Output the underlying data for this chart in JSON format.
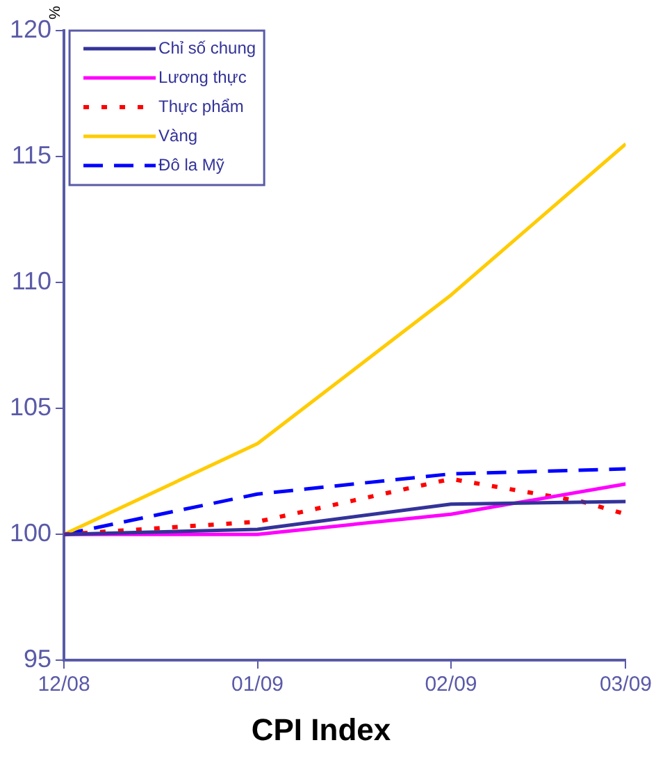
{
  "chart_data": {
    "type": "line",
    "title": "CPI Index",
    "ylabel": "%",
    "x": [
      "2008-12",
      "2009-01",
      "2009-02",
      "2009-03"
    ],
    "xlim": [
      "2008-12",
      "2009-03"
    ],
    "xticks": [
      {
        "value": "2008-12",
        "label": "12/08"
      },
      {
        "value": "2009-01",
        "label": "01/09"
      },
      {
        "value": "2009-02",
        "label": "02/09"
      },
      {
        "value": "2009-03",
        "label": "03/09"
      }
    ],
    "ylim": [
      95,
      120
    ],
    "yticks": [
      95,
      100,
      105,
      110,
      115,
      120
    ],
    "grid": false,
    "legend": "top left",
    "marker": "none",
    "series": [
      {
        "name": "Chỉ số chung",
        "color": "#333399",
        "line_style": "solid",
        "values": [
          100,
          100.2,
          101.2,
          101.3
        ]
      },
      {
        "name": "Lương thực",
        "color": "#ff00ff",
        "line_style": "solid",
        "values": [
          100,
          100,
          100.8,
          102
        ]
      },
      {
        "name": "Thực phẩm",
        "color": "#ff0000",
        "line_style": "dotted",
        "x": [
          "2008-12",
          "2009-01",
          "2009-02",
          "2009-02-22",
          "2009-03"
        ],
        "values": [
          100,
          100.5,
          102.2,
          101.3,
          100.8
        ]
      },
      {
        "name": "Vàng",
        "color": "#ffcc00",
        "line_style": "solid",
        "values": [
          100,
          103.6,
          109.5,
          115.5
        ]
      },
      {
        "name": "Đô la Mỹ",
        "color": "#0000ff",
        "line_style": "dashed",
        "values": [
          100,
          101.6,
          102.4,
          102.6
        ]
      }
    ]
  }
}
